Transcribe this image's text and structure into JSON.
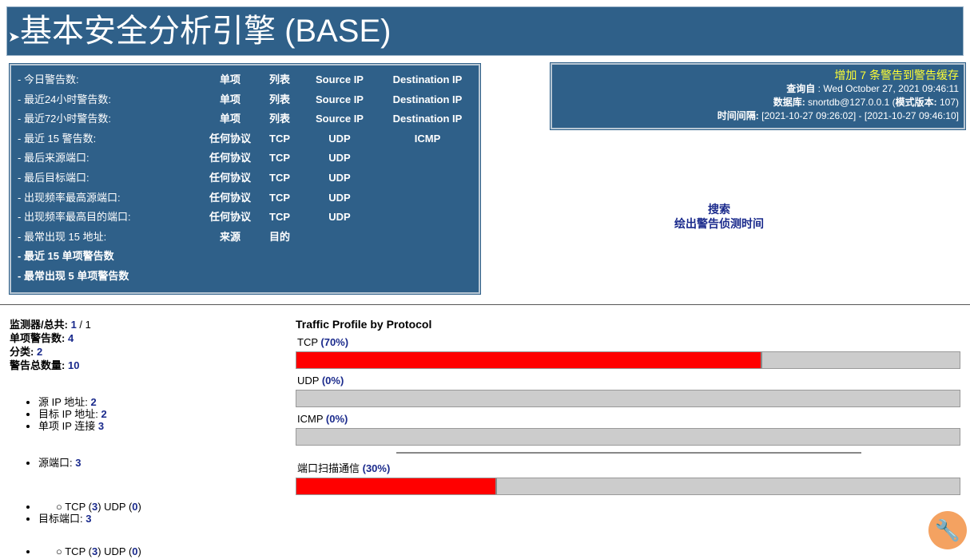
{
  "header": {
    "title": "基本安全分析引擎 (BASE)"
  },
  "menu": [
    {
      "label": "- 今日警告数:",
      "links": [
        "单项",
        "列表",
        "Source IP",
        "Destination IP"
      ]
    },
    {
      "label": "- 最近24小时警告数:",
      "links": [
        "单项",
        "列表",
        "Source IP",
        "Destination IP"
      ]
    },
    {
      "label": "- 最近72小时警告数:",
      "links": [
        "单项",
        "列表",
        "Source IP",
        "Destination IP"
      ]
    },
    {
      "label": "- 最近 15 警告数:",
      "links": [
        "任何协议",
        "TCP",
        "UDP",
        "ICMP"
      ]
    },
    {
      "label": "- 最后来源端口:",
      "links": [
        "任何协议",
        "TCP",
        "UDP"
      ]
    },
    {
      "label": "- 最后目标端口:",
      "links": [
        "任何协议",
        "TCP",
        "UDP"
      ]
    },
    {
      "label": "- 出现频率最高源端口:",
      "links": [
        "任何协议",
        "TCP",
        "UDP"
      ]
    },
    {
      "label": "- 出现频率最高目的端口:",
      "links": [
        "任何协议",
        "TCP",
        "UDP"
      ]
    },
    {
      "label": "- 最常出现 15 地址:",
      "links": [
        "来源",
        "目的"
      ]
    },
    {
      "label": "- 最近 15 单项警告数",
      "links": []
    },
    {
      "label": "- 最常出现 5 单项警告数",
      "links": []
    }
  ],
  "info": {
    "cache": "增加 7 条警告到警告缓存",
    "query_label": "查询自",
    "query_value": " : Wed October 27, 2021 09:46:11",
    "db_label": "数据库:",
    "db_value": " snortdb@127.0.0.1  (",
    "schema_label": "模式版本:",
    "schema_value": " 107)",
    "time_label": "时间间隔:",
    "time_value": " [2021-10-27 09:26:02] - [2021-10-27 09:46:10]"
  },
  "links": {
    "search": "搜索",
    "graph": "绘出警告侦测时间"
  },
  "stats": {
    "sensors_label": "监测器/总共:",
    "sensors": "1",
    "sensors_total": " / 1",
    "unique_label": "单项警告数:",
    "unique": "4",
    "cat_label": "分类:",
    "cat": "2",
    "total_label": "警告总数量:",
    "total": "10",
    "src_ip_label": "源 IP 地址: ",
    "src_ip": "2",
    "dst_ip_label": "目标 IP 地址: ",
    "dst_ip": "2",
    "uniq_ip_label": "单项 IP 连接 ",
    "uniq_ip": "3",
    "src_port_label": "源端口: ",
    "src_port": "3",
    "src_tcp": "3",
    "src_udp": "0",
    "dst_port_label": "目标端口: ",
    "dst_port": "3",
    "dst_tcp": "3",
    "dst_udp": "0",
    "tcp": "TCP (",
    "udp": ")  UDP (",
    "close": ")"
  },
  "traffic": {
    "title": "Traffic Profile by Protocol",
    "items": [
      {
        "label": "TCP ",
        "pct": "(70%)",
        "value": 70
      },
      {
        "label": "UDP ",
        "pct": "(0%)",
        "value": 0
      },
      {
        "label": "ICMP ",
        "pct": "(0%)",
        "value": 0
      }
    ],
    "portscan": {
      "label": "端口扫描通信 ",
      "pct": "(30%)",
      "value": 30
    }
  },
  "colors": {
    "header": "#2f6089",
    "bar_fill": "#ff0000",
    "bar_bg": "#cccccc",
    "link": "#1a2a8c",
    "cache": "#ffff33"
  }
}
